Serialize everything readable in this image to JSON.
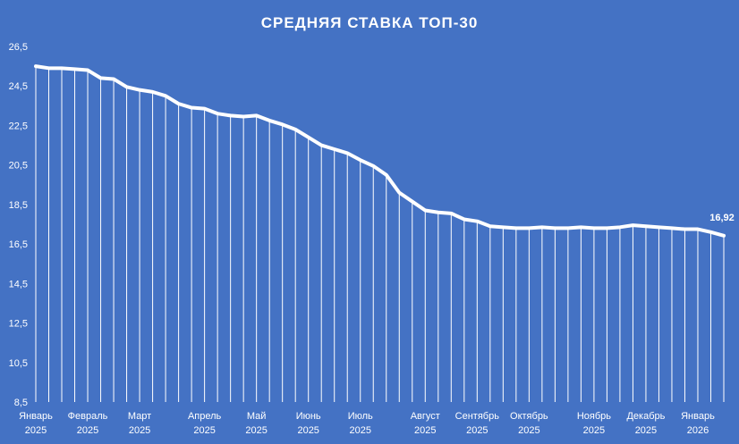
{
  "chart_data": {
    "type": "area",
    "title": "СРЕДНЯЯ СТАВКА ТОП-30",
    "xlabel": "",
    "ylabel": "",
    "ylim": [
      8.5,
      26.5
    ],
    "yticks": [
      "26,5",
      "24,5",
      "22,5",
      "20,5",
      "18,5",
      "16,5",
      "14,5",
      "12,5",
      "10,5",
      "8,5"
    ],
    "ytick_values": [
      26.5,
      24.5,
      22.5,
      20.5,
      18.5,
      16.5,
      14.5,
      12.5,
      10.5,
      8.5
    ],
    "month_labels": [
      {
        "month": "Январь",
        "year": "2025",
        "index": 0
      },
      {
        "month": "Февраль",
        "year": "2025",
        "index": 4
      },
      {
        "month": "Март",
        "year": "2025",
        "index": 8
      },
      {
        "month": "Апрель",
        "year": "2025",
        "index": 13
      },
      {
        "month": "Май",
        "year": "2025",
        "index": 17
      },
      {
        "month": "Июнь",
        "year": "2025",
        "index": 21
      },
      {
        "month": "Июль",
        "year": "2025",
        "index": 25
      },
      {
        "month": "Август",
        "year": "2025",
        "index": 30
      },
      {
        "month": "Сентябрь",
        "year": "2025",
        "index": 34
      },
      {
        "month": "Октябрь",
        "year": "2025",
        "index": 38
      },
      {
        "month": "Ноябрь",
        "year": "2025",
        "index": 43
      },
      {
        "month": "Декабрь",
        "year": "2025",
        "index": 47
      },
      {
        "month": "Январь",
        "year": "2026",
        "index": 51
      }
    ],
    "values": [
      25.5,
      25.4,
      25.4,
      25.35,
      25.3,
      24.9,
      24.85,
      24.45,
      24.3,
      24.2,
      24.0,
      23.6,
      23.4,
      23.35,
      23.1,
      23.0,
      22.95,
      23.0,
      22.75,
      22.55,
      22.3,
      21.9,
      21.5,
      21.3,
      21.1,
      20.75,
      20.45,
      20.0,
      19.1,
      18.65,
      18.2,
      18.1,
      18.05,
      17.75,
      17.65,
      17.4,
      17.35,
      17.3,
      17.3,
      17.35,
      17.3,
      17.3,
      17.35,
      17.3,
      17.3,
      17.35,
      17.45,
      17.4,
      17.35,
      17.3,
      17.25,
      17.25,
      17.1,
      16.92
    ],
    "last_label": "16,92",
    "grid": false,
    "colors": {
      "background": "#4472C4",
      "line": "#ffffff",
      "drop_lines": "#ffffff"
    }
  }
}
